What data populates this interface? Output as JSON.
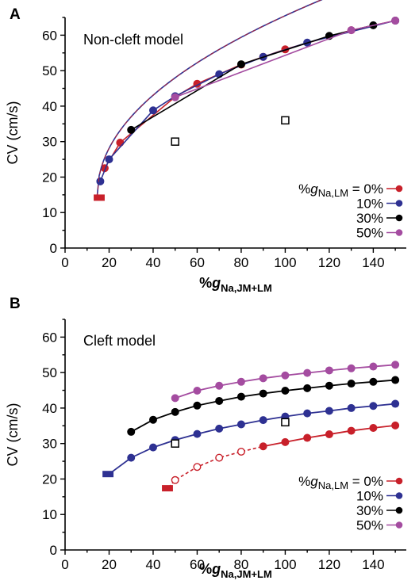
{
  "chart_data": [
    {
      "type": "line",
      "panel_label": "A",
      "title": "Non-cleft model",
      "xlabel": "%g",
      "xlabel_sub": "Na,JM+LM",
      "ylabel": "CV (cm/s)",
      "xlim": [
        0,
        155
      ],
      "ylim": [
        0,
        65
      ],
      "xticks": [
        "0",
        "20",
        "40",
        "60",
        "80",
        "100",
        "120",
        "140"
      ],
      "yticks": [
        "0",
        "10",
        "20",
        "30",
        "40",
        "50",
        "60"
      ],
      "xtick_values": [
        0,
        20,
        40,
        60,
        80,
        100,
        120,
        140
      ],
      "ytick_values": [
        0,
        10,
        20,
        30,
        40,
        50,
        60
      ],
      "legend_prefix": "%g",
      "legend_sub": "Na,LM",
      "legend_suffix": " = ",
      "legend_position": "right",
      "series": [
        {
          "name": "0%",
          "color": "#c8202a",
          "x": [
            18,
            25,
            50,
            60,
            80,
            90,
            100,
            130,
            150
          ],
          "y": [
            22.5,
            29.7,
            42.6,
            46.3,
            51.7,
            53.9,
            56.0,
            61.4,
            64.1
          ],
          "solid_from": 0
        },
        {
          "name": "10%",
          "color": "#2e3192",
          "x": [
            16,
            20,
            40,
            50,
            70,
            90,
            110,
            150
          ],
          "y": [
            18.8,
            25.0,
            38.8,
            42.8,
            49.0,
            53.9,
            57.9,
            64.1
          ],
          "solid_from": 0
        },
        {
          "name": "30%",
          "color": "#000000",
          "x": [
            30,
            80,
            120,
            140
          ],
          "y": [
            33.3,
            51.8,
            59.8,
            62.8
          ],
          "solid_from": 0
        },
        {
          "name": "50%",
          "color": "#a44ca0",
          "x": [
            50,
            130,
            150
          ],
          "y": [
            42.5,
            61.4,
            64.1
          ],
          "solid_from": 0
        }
      ],
      "curve_function": "A",
      "threshold_markers": [
        {
          "x0": 13,
          "x1": 18,
          "y": 14.2,
          "color": "#c8202a"
        }
      ],
      "open_squares": [
        {
          "x": 50,
          "y": 30
        },
        {
          "x": 100,
          "y": 36
        }
      ]
    },
    {
      "type": "line",
      "panel_label": "B",
      "title": "Cleft model",
      "xlabel": "%g",
      "xlabel_sub": "Na,JM+LM",
      "ylabel": "CV (cm/s)",
      "xlim": [
        0,
        155
      ],
      "ylim": [
        0,
        65
      ],
      "xticks": [
        "0",
        "20",
        "40",
        "60",
        "80",
        "100",
        "120",
        "140"
      ],
      "yticks": [
        "0",
        "10",
        "20",
        "30",
        "40",
        "50",
        "60"
      ],
      "xtick_values": [
        0,
        20,
        40,
        60,
        80,
        100,
        120,
        140
      ],
      "ytick_values": [
        0,
        10,
        20,
        30,
        40,
        50,
        60
      ],
      "legend_prefix": "%g",
      "legend_sub": "Na,LM",
      "legend_suffix": " = ",
      "legend_position": "right",
      "series": [
        {
          "name": "0%",
          "color": "#c8202a",
          "x": [
            50,
            60,
            70,
            80,
            90,
            100,
            110,
            120,
            130,
            140,
            150
          ],
          "y": [
            19.7,
            23.4,
            26.0,
            27.7,
            29.2,
            30.4,
            31.6,
            32.6,
            33.6,
            34.4,
            35.1
          ],
          "solid_from": 4,
          "dashed_start": 47
        },
        {
          "name": "10%",
          "color": "#2e3192",
          "x": [
            30,
            40,
            50,
            60,
            70,
            80,
            90,
            100,
            110,
            120,
            130,
            140,
            150
          ],
          "y": [
            26.0,
            28.9,
            31.0,
            32.7,
            34.2,
            35.4,
            36.6,
            37.6,
            38.5,
            39.2,
            40.0,
            40.6,
            41.2
          ],
          "solid_from": 0,
          "start": 20
        },
        {
          "name": "30%",
          "color": "#000000",
          "x": [
            30,
            40,
            50,
            60,
            70,
            80,
            90,
            100,
            110,
            120,
            130,
            140,
            150
          ],
          "y": [
            33.3,
            36.7,
            38.9,
            40.7,
            42.0,
            43.2,
            44.1,
            44.9,
            45.6,
            46.3,
            46.9,
            47.4,
            47.9
          ],
          "solid_from": 0
        },
        {
          "name": "50%",
          "color": "#a44ca0",
          "x": [
            50,
            60,
            70,
            80,
            90,
            100,
            110,
            120,
            130,
            140,
            150
          ],
          "y": [
            42.8,
            44.9,
            46.3,
            47.4,
            48.4,
            49.2,
            49.9,
            50.6,
            51.2,
            51.7,
            52.2
          ],
          "solid_from": 0
        }
      ],
      "threshold_markers": [
        {
          "x0": 17,
          "x1": 22,
          "y": 21.4,
          "color": "#2e3192"
        },
        {
          "x0": 44,
          "x1": 49,
          "y": 17.4,
          "color": "#c8202a"
        }
      ],
      "open_squares": [
        {
          "x": 50,
          "y": 30
        },
        {
          "x": 100,
          "y": 36
        }
      ]
    }
  ]
}
